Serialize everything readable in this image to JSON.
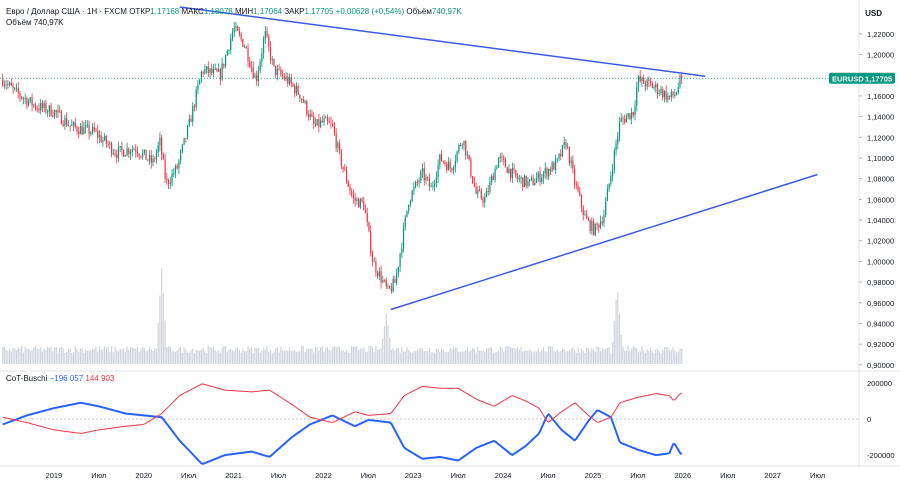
{
  "header": {
    "symbol_desc": "Евро / Доллар США · 1Н · FXCM",
    "open_label": "ОТКР",
    "open_value": "1,17168",
    "high_label": "МАКС",
    "high_value": "1,18078",
    "low_label": "МИН",
    "low_value": "1,17064",
    "close_label": "ЗАКР",
    "close_value": "1,17705",
    "change": "+0,00628 (+0,54%)",
    "volume_label": "Объём",
    "volume_value": "740,97K",
    "volume_line": "Объём  740,97K"
  },
  "currency": "USD",
  "price_tag": {
    "symbol": "EURUSD",
    "value": "1,17705"
  },
  "cot": {
    "label": "CoT-Buschi",
    "blue_value": "−196 057",
    "red_value": "144 903"
  },
  "colors": {
    "up": "#089981",
    "down": "#f23645",
    "trendline": "#3d5ae6",
    "cot_blue": "#2962ff",
    "cot_red": "#f23645",
    "volume": "#d1d4dc"
  },
  "chart_data": [
    {
      "type": "candlestick",
      "title": "Евро / Доллар США · 1Н · FXCM",
      "ylim": [
        0.895,
        1.245
      ],
      "yticks": [
        {
          "v": 0.9,
          "label": "0,90000"
        },
        {
          "v": 0.92,
          "label": "0,92000"
        },
        {
          "v": 0.94,
          "label": "0,94000"
        },
        {
          "v": 0.96,
          "label": "0,96000"
        },
        {
          "v": 0.98,
          "label": "0,98000"
        },
        {
          "v": 1.0,
          "label": "1,00000"
        },
        {
          "v": 1.02,
          "label": "1,02000"
        },
        {
          "v": 1.04,
          "label": "1,04000"
        },
        {
          "v": 1.06,
          "label": "1,06000"
        },
        {
          "v": 1.08,
          "label": "1,08000"
        },
        {
          "v": 1.1,
          "label": "1,10000"
        },
        {
          "v": 1.12,
          "label": "1,12000"
        },
        {
          "v": 1.14,
          "label": "1,14000"
        },
        {
          "v": 1.16,
          "label": "1,16000"
        },
        {
          "v": 1.2,
          "label": "1,20000"
        },
        {
          "v": 1.22,
          "label": "1,22000"
        }
      ],
      "xlim": [
        2018.4,
        2027.95
      ],
      "xticks": [
        {
          "t": 2019.0,
          "label": "2019"
        },
        {
          "t": 2019.5,
          "label": "Июл"
        },
        {
          "t": 2020.0,
          "label": "2020"
        },
        {
          "t": 2020.5,
          "label": "Июл"
        },
        {
          "t": 2021.0,
          "label": "2021"
        },
        {
          "t": 2021.5,
          "label": "Июл"
        },
        {
          "t": 2022.0,
          "label": "2022"
        },
        {
          "t": 2022.5,
          "label": "Июл"
        },
        {
          "t": 2023.0,
          "label": "2023"
        },
        {
          "t": 2023.5,
          "label": "Июл"
        },
        {
          "t": 2024.0,
          "label": "2024"
        },
        {
          "t": 2024.5,
          "label": "Июл"
        },
        {
          "t": 2025.0,
          "label": "2025"
        },
        {
          "t": 2025.5,
          "label": "Июл"
        },
        {
          "t": 2026.0,
          "label": "2026"
        },
        {
          "t": 2026.5,
          "label": "Июл"
        },
        {
          "t": 2027.0,
          "label": "2027"
        },
        {
          "t": 2027.5,
          "label": "Июл"
        }
      ],
      "bars_per_year": 52,
      "start_time": 2018.43,
      "close_anchors": [
        [
          2018.43,
          1.176
        ],
        [
          2018.55,
          1.165
        ],
        [
          2018.8,
          1.15
        ],
        [
          2019.0,
          1.145
        ],
        [
          2019.2,
          1.13
        ],
        [
          2019.45,
          1.125
        ],
        [
          2019.7,
          1.105
        ],
        [
          2019.9,
          1.11
        ],
        [
          2020.1,
          1.095
        ],
        [
          2020.18,
          1.115
        ],
        [
          2020.25,
          1.075
        ],
        [
          2020.37,
          1.09
        ],
        [
          2020.5,
          1.13
        ],
        [
          2020.65,
          1.185
        ],
        [
          2020.85,
          1.18
        ],
        [
          2021.0,
          1.225
        ],
        [
          2021.12,
          1.21
        ],
        [
          2021.25,
          1.175
        ],
        [
          2021.35,
          1.22
        ],
        [
          2021.45,
          1.185
        ],
        [
          2021.6,
          1.175
        ],
        [
          2021.75,
          1.16
        ],
        [
          2021.9,
          1.13
        ],
        [
          2022.0,
          1.135
        ],
        [
          2022.1,
          1.13
        ],
        [
          2022.2,
          1.095
        ],
        [
          2022.33,
          1.06
        ],
        [
          2022.45,
          1.055
        ],
        [
          2022.55,
          1.0
        ],
        [
          2022.72,
          0.97
        ],
        [
          2022.8,
          0.98
        ],
        [
          2022.95,
          1.06
        ],
        [
          2023.1,
          1.085
        ],
        [
          2023.2,
          1.07
        ],
        [
          2023.3,
          1.1
        ],
        [
          2023.42,
          1.09
        ],
        [
          2023.55,
          1.12
        ],
        [
          2023.7,
          1.065
        ],
        [
          2023.8,
          1.06
        ],
        [
          2023.95,
          1.1
        ],
        [
          2024.15,
          1.08
        ],
        [
          2024.3,
          1.075
        ],
        [
          2024.45,
          1.085
        ],
        [
          2024.6,
          1.095
        ],
        [
          2024.7,
          1.115
        ],
        [
          2024.8,
          1.075
        ],
        [
          2024.92,
          1.04
        ],
        [
          2025.02,
          1.03
        ],
        [
          2025.12,
          1.045
        ],
        [
          2025.2,
          1.085
        ],
        [
          2025.3,
          1.135
        ],
        [
          2025.45,
          1.145
        ],
        [
          2025.5,
          1.175
        ],
        [
          2025.65,
          1.17
        ],
        [
          2025.75,
          1.165
        ],
        [
          2025.85,
          1.158
        ],
        [
          2025.92,
          1.162
        ],
        [
          2025.98,
          1.177
        ]
      ],
      "last_close": 1.17705,
      "trendlines": [
        {
          "name": "resistance",
          "from": [
            2020.4,
            1.246
          ],
          "to": [
            2026.25,
            1.179
          ]
        },
        {
          "name": "support",
          "from": [
            2022.75,
            0.9535
          ],
          "to": [
            2027.5,
            1.084
          ]
        }
      ]
    },
    {
      "type": "bar",
      "title": "Объём",
      "latest_value": "740,97K",
      "spikes": [
        [
          2020.2,
          4.2
        ],
        [
          2022.7,
          1.9
        ],
        [
          2025.27,
          3.3
        ]
      ]
    },
    {
      "type": "line",
      "title": "CoT-Buschi",
      "ylim": [
        -260000,
        260000
      ],
      "yticks": [
        {
          "v": 200000,
          "label": "200000"
        },
        {
          "v": 0,
          "label": "0"
        },
        {
          "v": -200000,
          "label": "-200000"
        }
      ],
      "series": [
        {
          "name": "blue",
          "color": "#2962ff",
          "latest": -196057,
          "anchors": [
            [
              2018.43,
              -30000
            ],
            [
              2018.7,
              20000
            ],
            [
              2019.0,
              60000
            ],
            [
              2019.3,
              90000
            ],
            [
              2019.5,
              70000
            ],
            [
              2019.8,
              30000
            ],
            [
              2020.0,
              20000
            ],
            [
              2020.2,
              10000
            ],
            [
              2020.4,
              -120000
            ],
            [
              2020.65,
              -250000
            ],
            [
              2020.9,
              -200000
            ],
            [
              2021.2,
              -180000
            ],
            [
              2021.4,
              -210000
            ],
            [
              2021.65,
              -100000
            ],
            [
              2021.85,
              -30000
            ],
            [
              2022.1,
              20000
            ],
            [
              2022.35,
              -40000
            ],
            [
              2022.5,
              -5000
            ],
            [
              2022.75,
              -20000
            ],
            [
              2022.9,
              -160000
            ],
            [
              2023.1,
              -220000
            ],
            [
              2023.3,
              -210000
            ],
            [
              2023.5,
              -230000
            ],
            [
              2023.7,
              -160000
            ],
            [
              2023.9,
              -120000
            ],
            [
              2024.1,
              -200000
            ],
            [
              2024.25,
              -150000
            ],
            [
              2024.4,
              -80000
            ],
            [
              2024.5,
              30000
            ],
            [
              2024.65,
              -60000
            ],
            [
              2024.8,
              -120000
            ],
            [
              2024.95,
              -10000
            ],
            [
              2025.05,
              50000
            ],
            [
              2025.2,
              10000
            ],
            [
              2025.3,
              -130000
            ],
            [
              2025.5,
              -170000
            ],
            [
              2025.7,
              -200000
            ],
            [
              2025.85,
              -190000
            ],
            [
              2025.9,
              -130000
            ],
            [
              2025.98,
              -196057
            ]
          ]
        },
        {
          "name": "red",
          "color": "#f23645",
          "latest": 144903,
          "anchors": [
            [
              2018.43,
              10000
            ],
            [
              2018.7,
              -20000
            ],
            [
              2019.0,
              -60000
            ],
            [
              2019.3,
              -80000
            ],
            [
              2019.5,
              -60000
            ],
            [
              2019.8,
              -40000
            ],
            [
              2020.0,
              -30000
            ],
            [
              2020.2,
              30000
            ],
            [
              2020.4,
              130000
            ],
            [
              2020.65,
              195000
            ],
            [
              2020.9,
              160000
            ],
            [
              2021.2,
              150000
            ],
            [
              2021.4,
              160000
            ],
            [
              2021.65,
              80000
            ],
            [
              2021.85,
              10000
            ],
            [
              2022.1,
              -20000
            ],
            [
              2022.35,
              40000
            ],
            [
              2022.5,
              20000
            ],
            [
              2022.75,
              30000
            ],
            [
              2022.9,
              130000
            ],
            [
              2023.1,
              180000
            ],
            [
              2023.3,
              170000
            ],
            [
              2023.5,
              170000
            ],
            [
              2023.7,
              110000
            ],
            [
              2023.9,
              70000
            ],
            [
              2024.1,
              130000
            ],
            [
              2024.25,
              100000
            ],
            [
              2024.4,
              60000
            ],
            [
              2024.5,
              -20000
            ],
            [
              2024.65,
              40000
            ],
            [
              2024.8,
              90000
            ],
            [
              2024.95,
              20000
            ],
            [
              2025.05,
              -20000
            ],
            [
              2025.2,
              10000
            ],
            [
              2025.3,
              90000
            ],
            [
              2025.5,
              120000
            ],
            [
              2025.7,
              140000
            ],
            [
              2025.85,
              130000
            ],
            [
              2025.9,
              100000
            ],
            [
              2025.98,
              144903
            ]
          ]
        }
      ]
    }
  ]
}
